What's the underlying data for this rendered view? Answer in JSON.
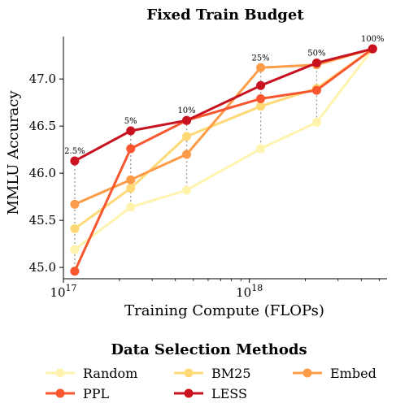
{
  "chart_data": {
    "type": "line",
    "title": "Fixed Train Budget",
    "xlabel": "Training Compute (FLOPs)",
    "ylabel": "MMLU Accuracy",
    "x_scale": "log",
    "xlim": [
      1e+17,
      5.5e+18
    ],
    "ylim": [
      44.88,
      47.45
    ],
    "x_ticks": [
      {
        "value": 1e+17,
        "base": "10",
        "exp": "17"
      },
      {
        "value": 1e+18,
        "base": "10",
        "exp": "18"
      }
    ],
    "y_ticks": [
      45.0,
      45.5,
      46.0,
      46.5,
      47.0
    ],
    "x": [
      1.15e+17,
      2.3e+17,
      4.6e+17,
      1.15e+18,
      2.3e+18,
      4.6e+18
    ],
    "series": [
      {
        "name": "Random",
        "color": "#fff3ad",
        "values": [
          45.19,
          45.64,
          45.82,
          46.26,
          46.54,
          47.32
        ]
      },
      {
        "name": "BM25",
        "color": "#fed976",
        "values": [
          45.41,
          45.84,
          46.39,
          46.71,
          46.9,
          47.32
        ]
      },
      {
        "name": "Embed",
        "color": "#fd9c48",
        "values": [
          45.67,
          45.93,
          46.2,
          47.12,
          47.15,
          47.32
        ]
      },
      {
        "name": "PPL",
        "color": "#f7562e",
        "values": [
          44.96,
          46.26,
          46.56,
          46.79,
          46.88,
          47.32
        ]
      },
      {
        "name": "LESS",
        "color": "#c8121f",
        "values": [
          46.13,
          46.45,
          46.56,
          46.93,
          47.17,
          47.32
        ]
      }
    ],
    "annotations": [
      "2.5%",
      "5%",
      "10%",
      "25%",
      "50%",
      "100%"
    ],
    "grid": false,
    "legend": {
      "title": "Data Selection Methods",
      "placement": "bottom"
    }
  }
}
